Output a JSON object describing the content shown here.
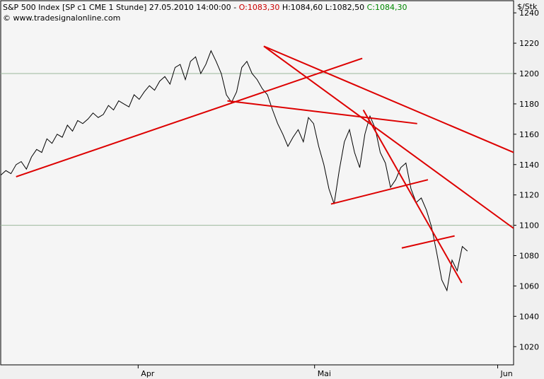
{
  "header": {
    "title": "S&P 500 Index [SP c1 CME  1 Stunde] 27.05.2010 14:00:00",
    "open_label": "O:1083,30",
    "high_label": "H:1084,60",
    "low_label": "L:1082,50",
    "close_label": "C:1084,30",
    "watermark": "© www.tradesignalonline.com",
    "colors": {
      "open": "#cc0000",
      "close": "#008800"
    }
  },
  "chart_data": {
    "type": "line",
    "title": "S&P 500 Index [SP c1 CME  1 Stunde] 27.05.2010 14:00:00",
    "ylabel": "$/Stk",
    "xlabel": "",
    "ylim": [
      1008,
      1248
    ],
    "xlim": [
      0,
      100
    ],
    "grid": false,
    "reference_lines": [
      1200,
      1100
    ],
    "x_ticks": [
      {
        "x": 26.8,
        "label": "Apr"
      },
      {
        "x": 61.2,
        "label": "Mai"
      },
      {
        "x": 96.9,
        "label": "Jun"
      }
    ],
    "y_ticks": [
      {
        "v": 1240,
        "label": "1240"
      },
      {
        "v": 1220,
        "label": "1220"
      },
      {
        "v": 1200,
        "label": "1200"
      },
      {
        "v": 1180,
        "label": "1180"
      },
      {
        "v": 1160,
        "label": "1160"
      },
      {
        "v": 1140,
        "label": "1140"
      },
      {
        "v": 1120,
        "label": "1120"
      },
      {
        "v": 1100,
        "label": "1100"
      },
      {
        "v": 1080,
        "label": "1080"
      },
      {
        "v": 1060,
        "label": "1060"
      },
      {
        "v": 1040,
        "label": "1040"
      },
      {
        "v": 1020,
        "label": "1020"
      }
    ],
    "series": [
      {
        "color": "#000000",
        "x": [
          0,
          1,
          2,
          3,
          4,
          5,
          6,
          7,
          8,
          9,
          10,
          11,
          12,
          13,
          14,
          15,
          16,
          17,
          18,
          19,
          20,
          21,
          22,
          23,
          24,
          25,
          26,
          27,
          28,
          29,
          30,
          31,
          32,
          33,
          34,
          35,
          36,
          37,
          38,
          39,
          40,
          41,
          42,
          43,
          44,
          45,
          46,
          47,
          48,
          49,
          50,
          51,
          52,
          53,
          54,
          55,
          56,
          57,
          58,
          59,
          60,
          61,
          62,
          63,
          64,
          65,
          66,
          67,
          68,
          69,
          70,
          71,
          72,
          73,
          74,
          75,
          76,
          77,
          78,
          79,
          80,
          81,
          82,
          83,
          84,
          85,
          86,
          87,
          88,
          89,
          90,
          91
        ],
        "values": [
          1133,
          1136,
          1134,
          1140,
          1142,
          1137,
          1145,
          1150,
          1148,
          1157,
          1154,
          1160,
          1158,
          1166,
          1162,
          1169,
          1167,
          1170,
          1174,
          1171,
          1173,
          1179,
          1176,
          1182,
          1180,
          1178,
          1186,
          1183,
          1188,
          1192,
          1189,
          1195,
          1198,
          1193,
          1204,
          1206,
          1196,
          1208,
          1211,
          1200,
          1206,
          1215,
          1208,
          1200,
          1186,
          1181,
          1188,
          1204,
          1208,
          1200,
          1196,
          1190,
          1186,
          1176,
          1167,
          1160,
          1152,
          1158,
          1163,
          1155,
          1171,
          1167,
          1152,
          1140,
          1124,
          1114,
          1136,
          1155,
          1163,
          1148,
          1138,
          1160,
          1172,
          1164,
          1148,
          1141,
          1125,
          1130,
          1138,
          1141,
          1124,
          1115,
          1118,
          1110,
          1099,
          1082,
          1064,
          1057,
          1077,
          1070,
          1086,
          1083
        ]
      }
    ],
    "trendlines": [
      {
        "color": "#dd0000",
        "x1": 3.0,
        "y1": 1132,
        "x2": 70.5,
        "y2": 1210
      },
      {
        "color": "#dd0000",
        "x1": 44.2,
        "y1": 1182,
        "x2": 81.2,
        "y2": 1167
      },
      {
        "color": "#dd0000",
        "x1": 51.3,
        "y1": 1218,
        "x2": 100.0,
        "y2": 1148
      },
      {
        "color": "#dd0000",
        "x1": 51.3,
        "y1": 1218,
        "x2": 100.0,
        "y2": 1098
      },
      {
        "color": "#dd0000",
        "x1": 70.7,
        "y1": 1176,
        "x2": 89.9,
        "y2": 1062
      },
      {
        "color": "#dd0000",
        "x1": 64.4,
        "y1": 1114,
        "x2": 83.3,
        "y2": 1130
      },
      {
        "color": "#dd0000",
        "x1": 78.2,
        "y1": 1085,
        "x2": 88.5,
        "y2": 1093
      }
    ]
  }
}
